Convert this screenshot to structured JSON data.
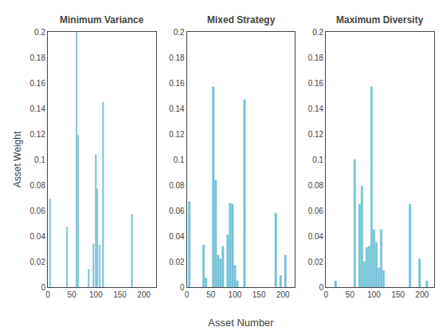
{
  "chart_data": [
    {
      "type": "bar",
      "title": "Minimum Variance",
      "ylabel": "Asset Weight",
      "color": "#74C2D8",
      "x": [
        5,
        40,
        60,
        63,
        85,
        95,
        100,
        103,
        108,
        115,
        175
      ],
      "values": [
        0.069,
        0.047,
        0.2,
        0.119,
        0.014,
        0.034,
        0.104,
        0.077,
        0.033,
        0.145,
        0.057
      ],
      "xlim": [
        0,
        225
      ],
      "xticks": [
        0,
        50,
        100,
        150,
        200
      ],
      "ylim": [
        0,
        0.2
      ],
      "yticks": [
        0,
        0.02,
        0.04,
        0.06,
        0.08,
        0.1,
        0.12,
        0.14,
        0.16,
        0.18,
        0.2
      ],
      "grid": false
    },
    {
      "type": "bar",
      "title": "Mixed Strategy",
      "xlabel": "Asset Number",
      "color": "#74C2D8",
      "x": [
        5,
        35,
        40,
        55,
        60,
        65,
        70,
        75,
        85,
        90,
        95,
        100,
        105,
        120,
        185,
        195,
        205
      ],
      "values": [
        0.067,
        0.033,
        0.007,
        0.157,
        0.084,
        0.025,
        0.022,
        0.032,
        0.041,
        0.066,
        0.065,
        0.017,
        0.005,
        0.147,
        0.058,
        0.009,
        0.025
      ],
      "xlim": [
        0,
        225
      ],
      "xticks": [
        0,
        50,
        100,
        150,
        200
      ],
      "ylim": [
        0,
        0.2
      ],
      "yticks": [
        0,
        0.02,
        0.04,
        0.06,
        0.08,
        0.1,
        0.12,
        0.14,
        0.16,
        0.18,
        0.2
      ],
      "grid": false
    },
    {
      "type": "bar",
      "title": "Maximum Diversity",
      "color": "#74C2D8",
      "x": [
        20,
        60,
        70,
        75,
        80,
        85,
        90,
        95,
        100,
        105,
        110,
        115,
        120,
        175,
        195,
        210
      ],
      "values": [
        0.005,
        0.1,
        0.065,
        0.079,
        0.02,
        0.031,
        0.032,
        0.157,
        0.045,
        0.035,
        0.015,
        0.045,
        0.013,
        0.065,
        0.022,
        0.005
      ],
      "xlim": [
        0,
        225
      ],
      "xticks": [
        0,
        50,
        100,
        150,
        200
      ],
      "ylim": [
        0,
        0.2
      ],
      "yticks": [
        0,
        0.02,
        0.04,
        0.06,
        0.08,
        0.1,
        0.12,
        0.14,
        0.16,
        0.18,
        0.2
      ],
      "grid": false
    }
  ]
}
